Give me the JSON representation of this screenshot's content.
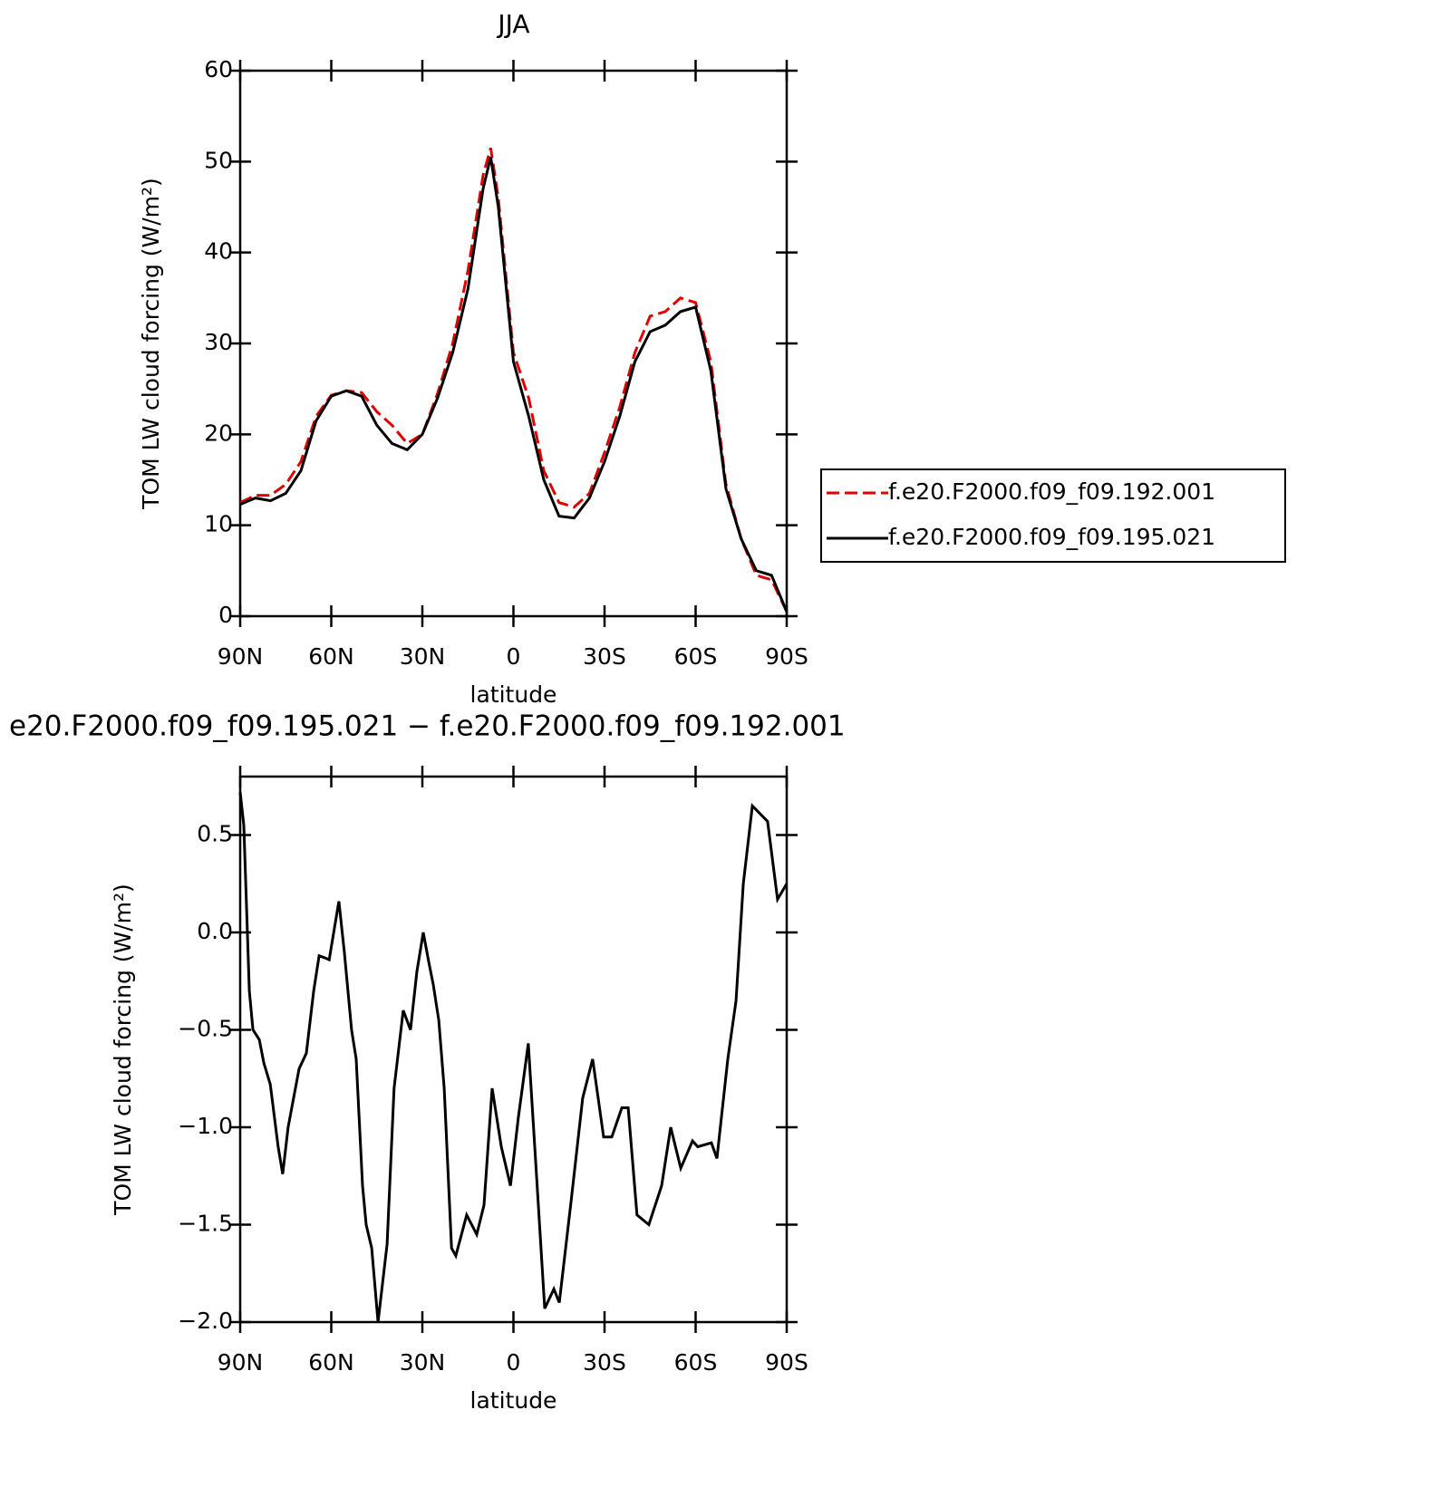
{
  "chart_data": [
    {
      "type": "line",
      "title": "JJA",
      "xlabel": "latitude",
      "ylabel": "TOM LW cloud forcing (W/m²)",
      "x": [
        90,
        85,
        80,
        75,
        70,
        65,
        60,
        55,
        50,
        45,
        40,
        35,
        30,
        25,
        20,
        15,
        10,
        7.5,
        5,
        0,
        -5,
        -10,
        -15,
        -20,
        -25,
        -30,
        -35,
        -40,
        -45,
        -50,
        -55,
        -60,
        -65,
        -70,
        -75,
        -80,
        -85,
        -90
      ],
      "series": [
        {
          "name": "f.e20.F2000.f09_f09.192.001",
          "color": "#e00000",
          "line_style": "dashed",
          "values": [
            12.5,
            13.3,
            13.3,
            14.5,
            17,
            22,
            24.3,
            24.8,
            24.6,
            22.5,
            21,
            19,
            20,
            24.5,
            30,
            38,
            48.5,
            51.5,
            46,
            29,
            24,
            16,
            12.5,
            12,
            13.5,
            18,
            23,
            29,
            33,
            33.5,
            35,
            34.5,
            28,
            14.5,
            8.5,
            4.5,
            4,
            0.5
          ]
        },
        {
          "name": "f.e20.F2000.f09_f09.195.021",
          "color": "#000000",
          "line_style": "solid",
          "values": [
            12.3,
            13.0,
            12.7,
            13.5,
            16,
            21.5,
            24.2,
            24.8,
            24.2,
            21,
            19,
            18.3,
            20,
            24,
            29,
            36,
            47,
            50.5,
            45,
            28,
            22,
            15,
            11,
            10.8,
            13,
            17,
            22,
            28,
            31.3,
            32,
            33.5,
            34,
            27,
            14,
            8.5,
            5,
            4.5,
            0.5
          ]
        }
      ],
      "xlim": [
        90,
        -90
      ],
      "xticks": [
        {
          "value": 90,
          "label": "90N"
        },
        {
          "value": 60,
          "label": "60N"
        },
        {
          "value": 30,
          "label": "30N"
        },
        0,
        {
          "value": -30,
          "label": "30S"
        },
        {
          "value": -60,
          "label": "60S"
        },
        {
          "value": -90,
          "label": "90S"
        }
      ],
      "ylim": [
        0,
        60
      ],
      "yticks": [
        0,
        10,
        20,
        30,
        40,
        50,
        60
      ],
      "legend": "right"
    },
    {
      "type": "line",
      "title": "e20.F2000.f09_f09.195.021 − f.e20.F2000.f09_f09.192.001",
      "xlabel": "latitude",
      "ylabel": "TOM LW cloud forcing (W/m²)",
      "x": [
        90,
        88.8,
        87,
        85.8,
        83.7,
        82.2,
        80.1,
        77.5,
        76,
        74.2,
        70.6,
        68.2,
        65.8,
        64,
        62.2,
        60.7,
        57.5,
        55.7,
        53.3,
        51.8,
        49.7,
        48.5,
        46.7,
        44.6,
        41.6,
        39.3,
        36.3,
        33.9,
        31.8,
        29.7,
        27.9,
        26.4,
        24.6,
        22.8,
        20.4,
        19,
        15.4,
        12.1,
        9.7,
        7,
        4,
        1,
        -1.6,
        -4.9,
        -7,
        -10.3,
        -13.3,
        -15.1,
        -19,
        -22.8,
        -26.1,
        -29.7,
        -32.4,
        -35.7,
        -37.8,
        -40.7,
        -44.6,
        -48.8,
        -51.8,
        -55.1,
        -59,
        -60.7,
        -65.2,
        -67,
        -70.6,
        -73.3,
        -75.7,
        -78.7,
        -83.7,
        -87,
        -90
      ],
      "series": [
        {
          "color": "#000000",
          "line_style": "solid",
          "values": [
            0.72,
            0.55,
            -0.3,
            -0.5,
            -0.55,
            -0.67,
            -0.78,
            -1.1,
            -1.24,
            -1.0,
            -0.7,
            -0.62,
            -0.3,
            -0.12,
            -0.13,
            -0.14,
            0.16,
            -0.1,
            -0.5,
            -0.65,
            -1.3,
            -1.5,
            -1.62,
            -2.0,
            -1.6,
            -0.8,
            -0.4,
            -0.5,
            -0.2,
            0.0,
            -0.15,
            -0.27,
            -0.45,
            -0.8,
            -1.62,
            -1.66,
            -1.45,
            -1.55,
            -1.4,
            -0.8,
            -1.1,
            -1.3,
            -0.95,
            -0.57,
            -1.1,
            -1.93,
            -1.83,
            -1.9,
            -1.38,
            -0.85,
            -0.65,
            -1.05,
            -1.05,
            -0.9,
            -0.9,
            -1.45,
            -1.5,
            -1.3,
            -1.0,
            -1.21,
            -1.07,
            -1.1,
            -1.08,
            -1.16,
            -0.65,
            -0.35,
            0.25,
            0.65,
            0.57,
            0.17,
            0.25
          ]
        }
      ],
      "xlim": [
        90,
        -90
      ],
      "xticks": [
        {
          "value": 90,
          "label": "90N"
        },
        {
          "value": 60,
          "label": "60N"
        },
        {
          "value": 30,
          "label": "30N"
        },
        0,
        {
          "value": -30,
          "label": "30S"
        },
        {
          "value": -60,
          "label": "60S"
        },
        {
          "value": -90,
          "label": "90S"
        }
      ],
      "ylim": [
        -2.0,
        0.8
      ],
      "yticks": [
        {
          "value": -2,
          "label": "−2.0"
        },
        {
          "value": -1.5,
          "label": "−1.5"
        },
        {
          "value": -1,
          "label": "−1.0"
        },
        {
          "value": -0.5,
          "label": "−0.5"
        },
        {
          "value": 0,
          "label": "0.0"
        },
        0.5
      ]
    }
  ]
}
